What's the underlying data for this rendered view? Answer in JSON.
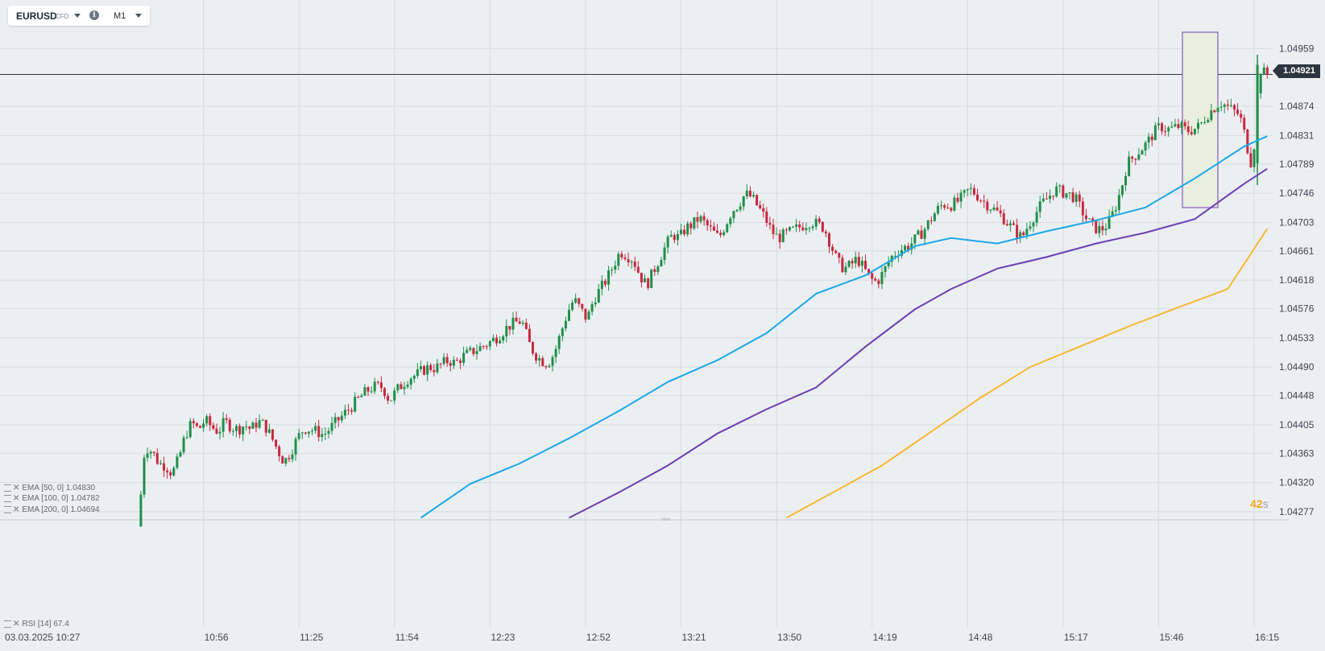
{
  "header": {
    "symbol": "EURUSD",
    "instrument_type": "CFD",
    "info_icon": "info-icon",
    "timeframe": "M1"
  },
  "indicators": [
    {
      "label": "EMA [50, 0]",
      "value": "1.04830",
      "color": "#1aa8e8"
    },
    {
      "label": "EMA [100, 0]",
      "value": "1.04782",
      "color": "#6a3fb5"
    },
    {
      "label": "EMA [200, 0]",
      "value": "1.04694",
      "color": "#f7b731"
    }
  ],
  "rsi_panel": {
    "label": "RSI [14]",
    "value": "67.4"
  },
  "countdown": {
    "value": "42",
    "unit": "s"
  },
  "last_price": "1.04921",
  "colors": {
    "up": "#1e8f4a",
    "down": "#c8283e",
    "grid": "#d7dce1",
    "highlight_border": "#6a3fb5",
    "highlight_fill": "#eaeede"
  },
  "chart_data": {
    "type": "candlestick",
    "x_labels": [
      "03.03.2025  10:27",
      "10:56",
      "11:25",
      "11:54",
      "12:23",
      "12:52",
      "13:21",
      "13:50",
      "14:19",
      "14:48",
      "15:17",
      "15:46",
      "16:15"
    ],
    "y_ticks": [
      "1.04959",
      "1.04874",
      "1.04831",
      "1.04789",
      "1.04746",
      "1.04703",
      "1.04661",
      "1.04618",
      "1.04576",
      "1.04533",
      "1.04490",
      "1.04448",
      "1.04405",
      "1.04363",
      "1.04320",
      "1.04277"
    ],
    "y_range": [
      1.04265,
      1.04995
    ],
    "time_range_minutes": [
      0,
      348
    ],
    "current_price": 1.04921,
    "price_path": [
      [
        10,
        1.04255
      ],
      [
        11,
        1.0435
      ],
      [
        12,
        1.04372
      ],
      [
        14,
        1.04365
      ],
      [
        16,
        1.04348
      ],
      [
        18,
        1.04345
      ],
      [
        20,
        1.04333
      ],
      [
        22,
        1.04355
      ],
      [
        24,
        1.0439
      ],
      [
        26,
        1.04408
      ],
      [
        28,
        1.04398
      ],
      [
        30,
        1.04412
      ],
      [
        32,
        1.04402
      ],
      [
        34,
        1.04395
      ],
      [
        36,
        1.0441
      ],
      [
        38,
        1.04402
      ],
      [
        40,
        1.04398
      ],
      [
        42,
        1.04405
      ],
      [
        44,
        1.04398
      ],
      [
        46,
        1.0441
      ],
      [
        48,
        1.04405
      ],
      [
        50,
        1.04388
      ],
      [
        52,
        1.04368
      ],
      [
        54,
        1.0435
      ],
      [
        56,
        1.04365
      ],
      [
        58,
        1.04385
      ],
      [
        60,
        1.044
      ],
      [
        62,
        1.04398
      ],
      [
        64,
        1.04395
      ],
      [
        66,
        1.0439
      ],
      [
        68,
        1.044
      ],
      [
        70,
        1.0441
      ],
      [
        72,
        1.0442
      ],
      [
        74,
        1.0443
      ],
      [
        76,
        1.0444
      ],
      [
        78,
        1.0445
      ],
      [
        80,
        1.04458
      ],
      [
        82,
        1.04462
      ],
      [
        84,
        1.0446
      ],
      [
        85,
        1.0445
      ],
      [
        86,
        1.0444
      ],
      [
        88,
        1.04455
      ],
      [
        90,
        1.04465
      ],
      [
        92,
        1.04475
      ],
      [
        94,
        1.04478
      ],
      [
        96,
        1.04485
      ],
      [
        98,
        1.0449
      ],
      [
        100,
        1.04488
      ],
      [
        102,
        1.04495
      ],
      [
        104,
        1.045
      ],
      [
        106,
        1.04495
      ],
      [
        108,
        1.04505
      ],
      [
        110,
        1.0451
      ],
      [
        112,
        1.04515
      ],
      [
        114,
        1.0452
      ],
      [
        116,
        1.04525
      ],
      [
        118,
        1.04532
      ],
      [
        120,
        1.0454
      ],
      [
        122,
        1.0455
      ],
      [
        124,
        1.04555
      ],
      [
        126,
        1.04558
      ],
      [
        127,
        1.04548
      ],
      [
        128,
        1.04528
      ],
      [
        130,
        1.0451
      ],
      [
        132,
        1.045
      ],
      [
        134,
        1.04495
      ],
      [
        136,
        1.0451
      ],
      [
        138,
        1.0454
      ],
      [
        140,
        1.0457
      ],
      [
        142,
        1.0459
      ],
      [
        144,
        1.04575
      ],
      [
        146,
        1.0456
      ],
      [
        148,
        1.0459
      ],
      [
        150,
        1.04605
      ],
      [
        152,
        1.0462
      ],
      [
        154,
        1.0464
      ],
      [
        156,
        1.0466
      ],
      [
        158,
        1.04655
      ],
      [
        160,
        1.04648
      ],
      [
        162,
        1.04625
      ],
      [
        164,
        1.0461
      ],
      [
        166,
        1.0463
      ],
      [
        168,
        1.0465
      ],
      [
        170,
        1.0467
      ],
      [
        172,
        1.04685
      ],
      [
        174,
        1.0468
      ],
      [
        176,
        1.04695
      ],
      [
        178,
        1.047
      ],
      [
        180,
        1.0471
      ],
      [
        182,
        1.047
      ],
      [
        184,
        1.0469
      ],
      [
        186,
        1.0468
      ],
      [
        188,
        1.047
      ],
      [
        190,
        1.0472
      ],
      [
        192,
        1.0473
      ],
      [
        194,
        1.04745
      ],
      [
        196,
        1.0474
      ],
      [
        198,
        1.04725
      ],
      [
        200,
        1.0471
      ],
      [
        202,
        1.0469
      ],
      [
        204,
        1.0468
      ],
      [
        206,
        1.04685
      ],
      [
        208,
        1.0469
      ],
      [
        210,
        1.04695
      ],
      [
        212,
        1.047
      ],
      [
        214,
        1.04705
      ],
      [
        216,
        1.047
      ],
      [
        218,
        1.04695
      ],
      [
        220,
        1.0467
      ],
      [
        222,
        1.04645
      ],
      [
        224,
        1.04635
      ],
      [
        226,
        1.0464
      ],
      [
        228,
        1.0465
      ],
      [
        230,
        1.04635
      ],
      [
        232,
        1.0462
      ],
      [
        234,
        1.04615
      ],
      [
        236,
        1.0463
      ],
      [
        238,
        1.0465
      ],
      [
        240,
        1.0466
      ],
      [
        242,
        1.04665
      ],
      [
        244,
        1.0467
      ],
      [
        246,
        1.0468
      ],
      [
        248,
        1.0469
      ],
      [
        250,
        1.04705
      ],
      [
        252,
        1.0472
      ],
      [
        254,
        1.0473
      ],
      [
        256,
        1.04728
      ],
      [
        258,
        1.04732
      ],
      [
        260,
        1.0474
      ],
      [
        262,
        1.04752
      ],
      [
        264,
        1.04745
      ],
      [
        266,
        1.04735
      ],
      [
        268,
        1.04728
      ],
      [
        270,
        1.0472
      ],
      [
        272,
        1.04712
      ],
      [
        274,
        1.047
      ],
      [
        276,
        1.0469
      ],
      [
        278,
        1.0468
      ],
      [
        280,
        1.047
      ],
      [
        282,
        1.04715
      ],
      [
        284,
        1.0473
      ],
      [
        286,
        1.0474
      ],
      [
        288,
        1.04752
      ],
      [
        290,
        1.04748
      ],
      [
        292,
        1.04745
      ],
      [
        294,
        1.0474
      ],
      [
        296,
        1.04722
      ],
      [
        298,
        1.04705
      ],
      [
        300,
        1.04695
      ],
      [
        302,
        1.04692
      ],
      [
        304,
        1.047
      ],
      [
        306,
        1.0472
      ],
      [
        308,
        1.0475
      ],
      [
        310,
        1.0479
      ],
      [
        312,
        1.048
      ],
      [
        314,
        1.0481
      ],
      [
        316,
        1.0482
      ],
      [
        318,
        1.04835
      ],
      [
        320,
        1.04845
      ],
      [
        322,
        1.0484
      ],
      [
        324,
        1.04842
      ],
      [
        326,
        1.04845
      ],
      [
        328,
        1.04838
      ],
      [
        330,
        1.0484
      ],
      [
        332,
        1.04845
      ],
      [
        334,
        1.0486
      ],
      [
        336,
        1.0487
      ],
      [
        338,
        1.0488
      ],
      [
        340,
        1.04875
      ],
      [
        342,
        1.04868
      ],
      [
        344,
        1.04862
      ],
      [
        345,
        1.04845
      ],
      [
        346,
        1.04825
      ],
      [
        347,
        1.048
      ],
      [
        348,
        1.04785
      ],
      [
        349,
        1.0485
      ],
      [
        350,
        1.0493
      ],
      [
        352,
        1.04921
      ]
    ],
    "ema50": [
      [
        95,
        1.04268
      ],
      [
        110,
        1.04318
      ],
      [
        125,
        1.04348
      ],
      [
        140,
        1.04385
      ],
      [
        155,
        1.04425
      ],
      [
        170,
        1.04468
      ],
      [
        185,
        1.045
      ],
      [
        200,
        1.0454
      ],
      [
        215,
        1.04598
      ],
      [
        230,
        1.04625
      ],
      [
        245,
        1.04668
      ],
      [
        256,
        1.0468
      ],
      [
        270,
        1.04672
      ],
      [
        285,
        1.0469
      ],
      [
        300,
        1.04706
      ],
      [
        315,
        1.04725
      ],
      [
        330,
        1.04768
      ],
      [
        345,
        1.04815
      ],
      [
        352,
        1.0483
      ]
    ],
    "ema100": [
      [
        140,
        1.04268
      ],
      [
        155,
        1.04305
      ],
      [
        170,
        1.04345
      ],
      [
        185,
        1.04392
      ],
      [
        200,
        1.04428
      ],
      [
        215,
        1.0446
      ],
      [
        230,
        1.0452
      ],
      [
        245,
        1.04575
      ],
      [
        256,
        1.04605
      ],
      [
        270,
        1.04635
      ],
      [
        285,
        1.04652
      ],
      [
        300,
        1.04672
      ],
      [
        315,
        1.04688
      ],
      [
        330,
        1.04708
      ],
      [
        345,
        1.0476
      ],
      [
        352,
        1.04782
      ]
    ],
    "ema200": [
      [
        206,
        1.04268
      ],
      [
        220,
        1.04305
      ],
      [
        235,
        1.04345
      ],
      [
        250,
        1.04395
      ],
      [
        265,
        1.04445
      ],
      [
        280,
        1.0449
      ],
      [
        295,
        1.0452
      ],
      [
        310,
        1.0455
      ],
      [
        325,
        1.04578
      ],
      [
        340,
        1.04605
      ],
      [
        352,
        1.04694
      ]
    ]
  }
}
